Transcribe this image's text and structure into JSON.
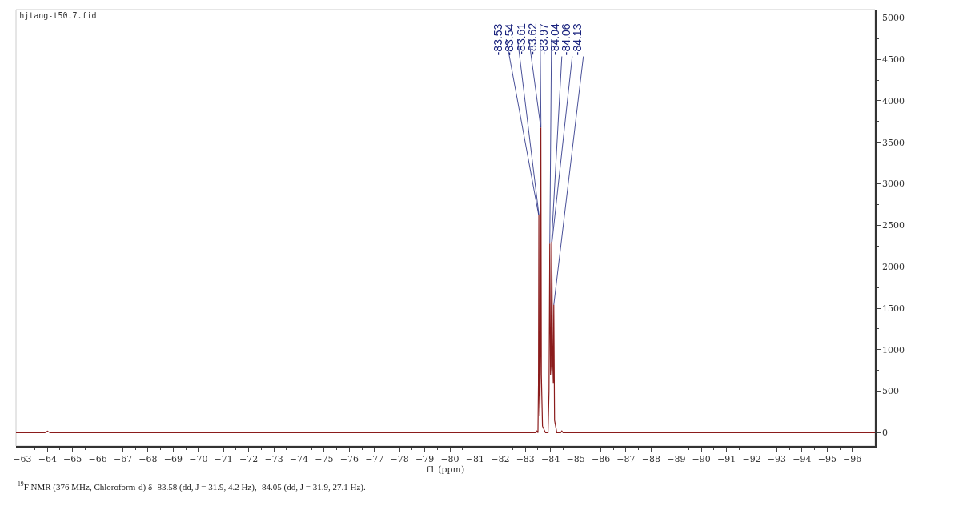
{
  "chart_data": {
    "type": "line",
    "title": "hjtang-t50.7.fid",
    "xlabel": "f1 (ppm)",
    "x": [
      -62.75,
      -63.9,
      -64.0,
      -64.1,
      -83.3,
      -83.42,
      -83.46,
      -83.5,
      -83.52,
      -83.535,
      -83.55,
      -83.575,
      -83.6,
      -83.615,
      -83.635,
      -83.68,
      -83.8,
      -83.9,
      -83.94,
      -83.97,
      -84.0,
      -84.02,
      -84.045,
      -84.085,
      -84.11,
      -84.13,
      -84.16,
      -84.25,
      -84.4,
      -84.45,
      -84.5,
      -96.9
    ],
    "series": [
      {
        "color": "#8b1c1c",
        "values": [
          0,
          0,
          20,
          0,
          0,
          0,
          20,
          0,
          600,
          2620,
          500,
          200,
          1100,
          3680,
          700,
          80,
          0,
          0,
          500,
          2280,
          700,
          800,
          2300,
          900,
          600,
          1540,
          150,
          0,
          0,
          20,
          0,
          0
        ]
      }
    ],
    "xlim": [
      -62.75,
      -96.9
    ],
    "xticks": [
      -63,
      -64,
      -65,
      -66,
      -67,
      -68,
      -69,
      -70,
      -71,
      -72,
      -73,
      -74,
      -75,
      -76,
      -77,
      -78,
      -79,
      -80,
      -81,
      -82,
      -83,
      -84,
      -85,
      -86,
      -87,
      -88,
      -89,
      -90,
      -91,
      -92,
      -93,
      -94,
      -95,
      -96
    ],
    "ylim": [
      -160,
      5100
    ],
    "yticks": [
      0,
      500,
      1000,
      1500,
      2000,
      2500,
      3000,
      3500,
      4000,
      4500,
      5000
    ],
    "grid": false,
    "marker": "none",
    "line_style": "solid",
    "annotations": [
      {
        "text": "-83.53",
        "x": -83.53,
        "y": 2620
      },
      {
        "text": "-83.54",
        "x": -83.54,
        "y": 2620
      },
      {
        "text": "-83.61",
        "x": -83.61,
        "y": 3680
      },
      {
        "text": "-83.62",
        "x": -83.62,
        "y": 3680
      },
      {
        "text": "-83.97",
        "x": -83.97,
        "y": 2280
      },
      {
        "text": "-84.04",
        "x": -84.04,
        "y": 2300
      },
      {
        "text": "-84.06",
        "x": -84.06,
        "y": 2300
      },
      {
        "text": "-84.13",
        "x": -84.13,
        "y": 1540
      },
      "$^{19}$F NMR (376 MHz, Chloroform-d) δ -83.58 (dd, J = 31.9, 4.2 Hz), -84.05 (dd, J = 31.9, 27.1 Hz)."
    ]
  }
}
